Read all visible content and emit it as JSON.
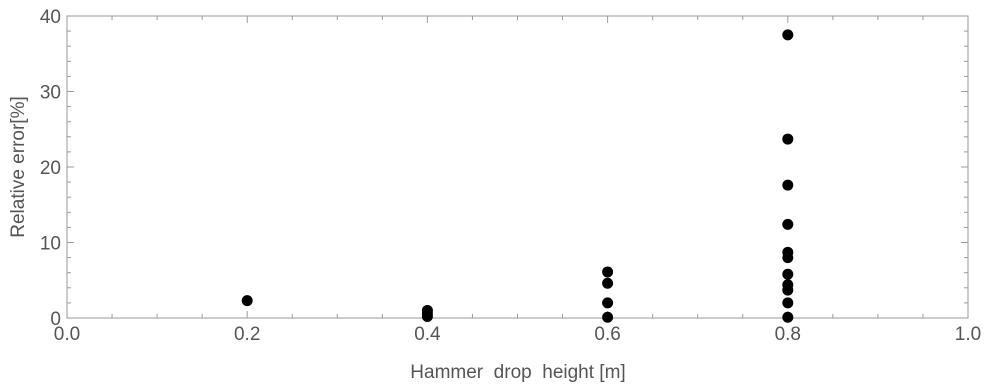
{
  "chart_data": {
    "type": "scatter",
    "title": "",
    "xlabel": "Hammer  drop  height [m]",
    "ylabel": "Relative error[%]",
    "xlim": [
      0.0,
      1.0
    ],
    "ylim": [
      0,
      40
    ],
    "xticks": [
      0.0,
      0.2,
      0.4,
      0.6,
      0.8,
      1.0
    ],
    "xtick_labels": [
      "0.0",
      "0.2",
      "0.4",
      "0.6",
      "0.8",
      "1.0"
    ],
    "yticks": [
      0,
      10,
      20,
      30,
      40
    ],
    "ytick_labels": [
      "0",
      "10",
      "20",
      "30",
      "40"
    ],
    "grid": false,
    "marker_color": "#000000",
    "frame_color": "#9a9a9a",
    "points": [
      {
        "x": 0.2,
        "y": 2.3
      },
      {
        "x": 0.4,
        "y": 1.0
      },
      {
        "x": 0.4,
        "y": 0.6
      },
      {
        "x": 0.4,
        "y": 0.2
      },
      {
        "x": 0.6,
        "y": 6.1
      },
      {
        "x": 0.6,
        "y": 4.6
      },
      {
        "x": 0.6,
        "y": 2.0
      },
      {
        "x": 0.6,
        "y": 0.1
      },
      {
        "x": 0.8,
        "y": 37.5
      },
      {
        "x": 0.8,
        "y": 23.7
      },
      {
        "x": 0.8,
        "y": 17.6
      },
      {
        "x": 0.8,
        "y": 12.4
      },
      {
        "x": 0.8,
        "y": 8.7
      },
      {
        "x": 0.8,
        "y": 8.0
      },
      {
        "x": 0.8,
        "y": 5.8
      },
      {
        "x": 0.8,
        "y": 4.4
      },
      {
        "x": 0.8,
        "y": 3.7
      },
      {
        "x": 0.8,
        "y": 2.0
      },
      {
        "x": 0.8,
        "y": 0.1
      }
    ]
  }
}
